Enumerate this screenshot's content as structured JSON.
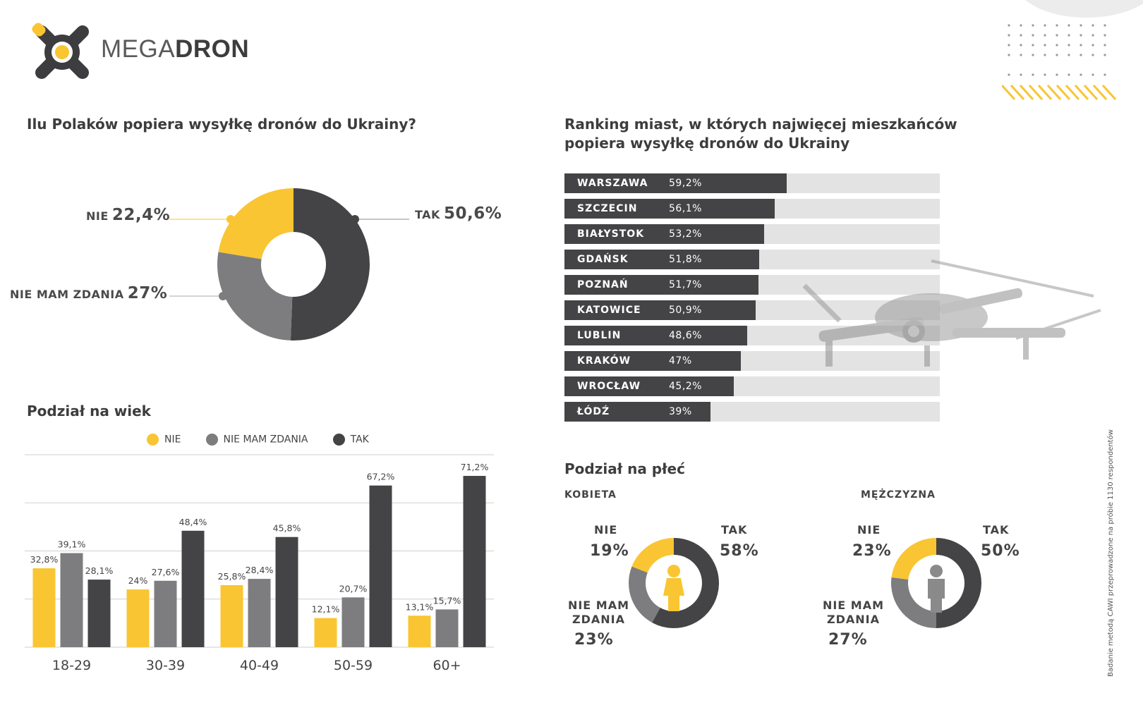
{
  "brand": {
    "name_light": "MEGA",
    "name_bold": "DRON"
  },
  "colors": {
    "yes": "#444446",
    "no": "#f9c532",
    "no_opinion": "#7d7d7f",
    "track": "#e3e3e3"
  },
  "main_question": {
    "title": "Ilu Polaków popiera wysyłkę dronów do Ukrainy?",
    "labels": [
      {
        "name": "TAK",
        "value": "50,6%"
      },
      {
        "name": "NIE",
        "value": "22,4%"
      },
      {
        "name": "NIE MAM ZDANIA",
        "value": "27%"
      }
    ]
  },
  "ranking": {
    "title_line1": "Ranking miast, w których najwięcej mieszkańców",
    "title_line2": "popiera wysyłkę dronów do Ukrainy"
  },
  "age": {
    "title": "Podział na wiek",
    "legend": [
      "NIE",
      "NIE MAM ZDANIA",
      "TAK"
    ]
  },
  "gender": {
    "title": "Podział na płeć",
    "female": {
      "label": "KOBIETA",
      "nie_label": "NIE",
      "nie": "19%",
      "tak_label": "TAK",
      "tak": "58%",
      "nmz_label_1": "NIE MAM",
      "nmz_label_2": "ZDANIA",
      "nmz": "23%"
    },
    "male": {
      "label": "MĘŻCZYZNA",
      "nie_label": "NIE",
      "nie": "23%",
      "tak_label": "TAK",
      "tak": "50%",
      "nmz_label_1": "NIE MAM",
      "nmz_label_2": "ZDANIA",
      "nmz": "27%"
    }
  },
  "footnote": "Badanie metodą CAWI przeprowadzone na próbie 1130 respondentów",
  "chart_data": [
    {
      "type": "pie",
      "title": "Ilu Polaków popiera wysyłkę dronów do Ukrainy?",
      "categories": [
        "TAK",
        "NIE MAM ZDANIA",
        "NIE"
      ],
      "values": [
        50.6,
        27,
        22.4
      ]
    },
    {
      "type": "bar",
      "title": "Ranking miast, w których najwięcej mieszkańców popiera wysyłkę dronów do Ukrainy",
      "categories": [
        "WARSZAWA",
        "SZCZECIN",
        "BIAŁYSTOK",
        "GDAŃSK",
        "POZNAŃ",
        "KATOWICE",
        "LUBLIN",
        "KRAKÓW",
        "WROCŁAW",
        "ŁÓDŹ"
      ],
      "values": [
        59.2,
        56.1,
        53.2,
        51.8,
        51.7,
        50.9,
        48.6,
        47,
        45.2,
        39
      ],
      "labels": [
        "59,2%",
        "56,1%",
        "53,2%",
        "51,8%",
        "51,7%",
        "50,9%",
        "48,6%",
        "47%",
        "45,2%",
        "39%"
      ],
      "xlim": [
        0,
        100
      ]
    },
    {
      "type": "bar",
      "title": "Podział na wiek",
      "categories": [
        "18-29",
        "30-39",
        "40-49",
        "50-59",
        "60+"
      ],
      "series": [
        {
          "name": "NIE",
          "values": [
            32.8,
            24,
            25.8,
            12.1,
            13.1
          ],
          "labels": [
            "32,8%",
            "24%",
            "25,8%",
            "12,1%",
            "13,1%"
          ]
        },
        {
          "name": "NIE MAM ZDANIA",
          "values": [
            39.1,
            27.6,
            28.4,
            20.7,
            15.7
          ],
          "labels": [
            "39,1%",
            "27,6%",
            "28,4%",
            "20,7%",
            "15,7%"
          ]
        },
        {
          "name": "TAK",
          "values": [
            28.1,
            48.4,
            45.8,
            67.2,
            71.2
          ],
          "labels": [
            "28,1%",
            "48,4%",
            "45,8%",
            "67,2%",
            "71,2%"
          ]
        }
      ],
      "ylim": [
        0,
        80
      ],
      "grid": true
    },
    {
      "type": "pie",
      "title": "KOBIETA",
      "categories": [
        "TAK",
        "NIE MAM ZDANIA",
        "NIE"
      ],
      "values": [
        58,
        23,
        19
      ]
    },
    {
      "type": "pie",
      "title": "MĘŻCZYZNA",
      "categories": [
        "TAK",
        "NIE MAM ZDANIA",
        "NIE"
      ],
      "values": [
        50,
        27,
        23
      ]
    }
  ]
}
